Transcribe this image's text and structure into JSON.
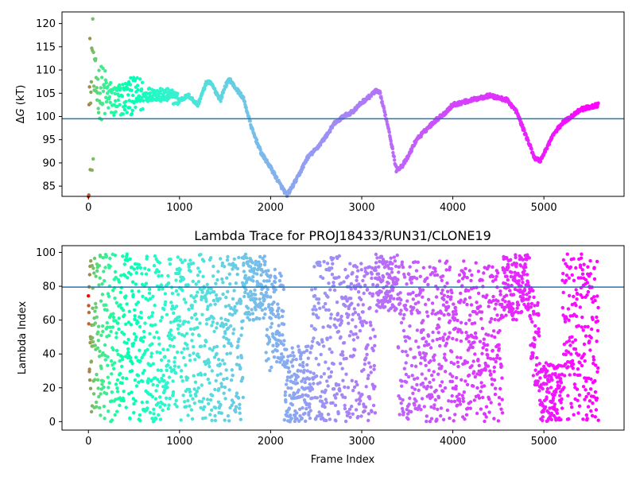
{
  "chart_data": [
    {
      "type": "scatter",
      "title": "",
      "xlabel": "",
      "ylabel": "ΔG (kT)",
      "ylabel_parts": {
        "delta": "Δ",
        "var": "G",
        "unit": " (kT)"
      },
      "xlim": [
        -290,
        5880
      ],
      "ylim": [
        82.8,
        122.5
      ],
      "xticks": [
        "0",
        "1000",
        "2000",
        "3000",
        "4000",
        "5000"
      ],
      "yticks": [
        "85",
        "90",
        "95",
        "100",
        "105",
        "110",
        "115",
        "120"
      ],
      "hline": 99.5,
      "hline_color": "#1f77b4",
      "color_map": "rainbow",
      "trace_keypoints": {
        "x": [
          0,
          40,
          60,
          100,
          150,
          200,
          300,
          400,
          500,
          600,
          700,
          800,
          900,
          1000,
          1100,
          1200,
          1300,
          1350,
          1450,
          1500,
          1550,
          1600,
          1700,
          1800,
          1900,
          2000,
          2100,
          2180,
          2300,
          2400,
          2500,
          2600,
          2700,
          2800,
          2900,
          3000,
          3100,
          3150,
          3200,
          3300,
          3380,
          3450,
          3500,
          3600,
          3700,
          3800,
          3900,
          4000,
          4100,
          4200,
          4300,
          4400,
          4500,
          4600,
          4700,
          4800,
          4900,
          4960,
          5000,
          5100,
          5200,
          5300,
          5400,
          5500,
          5600
        ],
        "y": [
          100,
          105,
          107,
          106,
          105,
          104.5,
          103,
          104,
          104.5,
          104.5,
          105,
          104.5,
          104.5,
          103.5,
          104.5,
          102.5,
          107.5,
          107,
          103.5,
          106.5,
          108,
          106.5,
          104,
          97,
          92,
          89,
          85.5,
          83,
          87,
          91,
          93,
          95.5,
          98.5,
          100,
          101,
          103,
          104.5,
          105.5,
          105,
          97,
          88.5,
          89.5,
          91,
          95,
          97,
          99,
          100.5,
          102.5,
          103,
          103.5,
          104,
          104.5,
          104,
          103.5,
          101,
          96,
          91,
          90.5,
          92,
          96,
          98.5,
          100,
          101.5,
          102,
          102.5
        ]
      }
    },
    {
      "type": "scatter",
      "title": "Lambda Trace for PROJ18433/RUN31/CLONE19",
      "xlabel": "Frame Index",
      "ylabel": "Lambda Index",
      "xlim": [
        -290,
        5880
      ],
      "ylim": [
        -5,
        104
      ],
      "xticks": [
        "0",
        "1000",
        "2000",
        "3000",
        "4000",
        "5000"
      ],
      "yticks": [
        "0",
        "20",
        "40",
        "60",
        "80",
        "100"
      ],
      "hline": 79.5,
      "hline_color": "#1f77b4",
      "color_map": "rainbow",
      "n_frames": 5600,
      "lambda_segments": [
        {
          "x0": 0,
          "x1": 1700,
          "lo": 0,
          "hi": 99
        },
        {
          "x0": 1700,
          "x1": 1950,
          "lo": 60,
          "hi": 99
        },
        {
          "x0": 1950,
          "x1": 2150,
          "lo": 30,
          "hi": 90
        },
        {
          "x0": 2150,
          "x1": 2450,
          "lo": 0,
          "hi": 45
        },
        {
          "x0": 2450,
          "x1": 3150,
          "lo": 0,
          "hi": 99
        },
        {
          "x0": 3150,
          "x1": 3400,
          "lo": 65,
          "hi": 99
        },
        {
          "x0": 3400,
          "x1": 4550,
          "lo": 0,
          "hi": 95
        },
        {
          "x0": 4550,
          "x1": 4850,
          "lo": 60,
          "hi": 99
        },
        {
          "x0": 4850,
          "x1": 4950,
          "lo": 20,
          "hi": 80
        },
        {
          "x0": 4950,
          "x1": 5200,
          "lo": 0,
          "hi": 35
        },
        {
          "x0": 5200,
          "x1": 5600,
          "lo": 0,
          "hi": 99
        }
      ]
    }
  ]
}
